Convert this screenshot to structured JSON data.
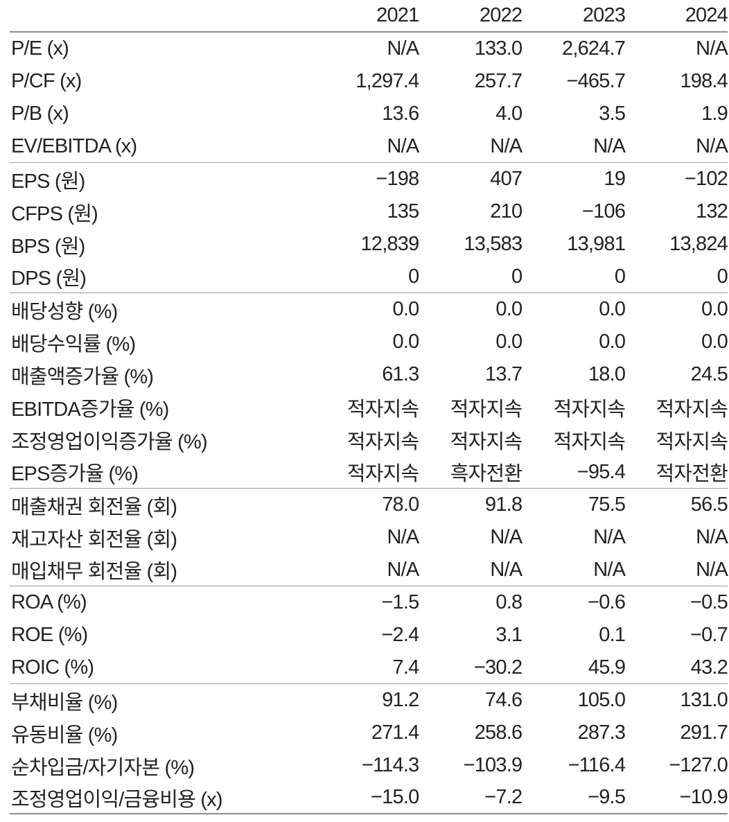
{
  "header": {
    "label": "",
    "years": [
      "2021",
      "2022",
      "2023",
      "2024"
    ]
  },
  "groups": [
    {
      "rows": [
        {
          "label": "P/E (x)",
          "values": [
            "N/A",
            "133.0",
            "2,624.7",
            "N/A"
          ]
        },
        {
          "label": "P/CF (x)",
          "values": [
            "1,297.4",
            "257.7",
            "−465.7",
            "198.4"
          ]
        },
        {
          "label": "P/B (x)",
          "values": [
            "13.6",
            "4.0",
            "3.5",
            "1.9"
          ]
        },
        {
          "label": "EV/EBITDA (x)",
          "values": [
            "N/A",
            "N/A",
            "N/A",
            "N/A"
          ]
        }
      ]
    },
    {
      "rows": [
        {
          "label": "EPS (원)",
          "values": [
            "−198",
            "407",
            "19",
            "−102"
          ]
        },
        {
          "label": "CFPS (원)",
          "values": [
            "135",
            "210",
            "−106",
            "132"
          ]
        },
        {
          "label": "BPS (원)",
          "values": [
            "12,839",
            "13,583",
            "13,981",
            "13,824"
          ]
        },
        {
          "label": "DPS (원)",
          "values": [
            "0",
            "0",
            "0",
            "0"
          ]
        }
      ]
    },
    {
      "rows": [
        {
          "label": "배당성향 (%)",
          "values": [
            "0.0",
            "0.0",
            "0.0",
            "0.0"
          ]
        },
        {
          "label": "배당수익률 (%)",
          "values": [
            "0.0",
            "0.0",
            "0.0",
            "0.0"
          ]
        },
        {
          "label": "매출액증가율 (%)",
          "values": [
            "61.3",
            "13.7",
            "18.0",
            "24.5"
          ]
        },
        {
          "label": "EBITDA증가율 (%)",
          "values": [
            "적자지속",
            "적자지속",
            "적자지속",
            "적자지속"
          ]
        },
        {
          "label": "조정영업이익증가율 (%)",
          "values": [
            "적자지속",
            "적자지속",
            "적자지속",
            "적자지속"
          ]
        },
        {
          "label": "EPS증가율 (%)",
          "values": [
            "적자지속",
            "흑자전환",
            "−95.4",
            "적자전환"
          ]
        }
      ]
    },
    {
      "rows": [
        {
          "label": "매출채권 회전율 (회)",
          "values": [
            "78.0",
            "91.8",
            "75.5",
            "56.5"
          ]
        },
        {
          "label": "재고자산 회전율 (회)",
          "values": [
            "N/A",
            "N/A",
            "N/A",
            "N/A"
          ]
        },
        {
          "label": "매입채무 회전율 (회)",
          "values": [
            "N/A",
            "N/A",
            "N/A",
            "N/A"
          ]
        }
      ]
    },
    {
      "rows": [
        {
          "label": "ROA (%)",
          "values": [
            "−1.5",
            "0.8",
            "−0.6",
            "−0.5"
          ]
        },
        {
          "label": "ROE (%)",
          "values": [
            "−2.4",
            "3.1",
            "0.1",
            "−0.7"
          ]
        },
        {
          "label": "ROIC (%)",
          "values": [
            "7.4",
            "−30.2",
            "45.9",
            "43.2"
          ]
        }
      ]
    },
    {
      "rows": [
        {
          "label": "부채비율 (%)",
          "values": [
            "91.2",
            "74.6",
            "105.0",
            "131.0"
          ]
        },
        {
          "label": "유동비율 (%)",
          "values": [
            "271.4",
            "258.6",
            "287.3",
            "291.7"
          ]
        },
        {
          "label": "순차입금/자기자본 (%)",
          "values": [
            "−114.3",
            "−103.9",
            "−116.4",
            "−127.0"
          ]
        },
        {
          "label": "조정영업이익/금융비용 (x)",
          "values": [
            "−15.0",
            "−7.2",
            "−9.5",
            "−10.9"
          ]
        }
      ]
    }
  ]
}
